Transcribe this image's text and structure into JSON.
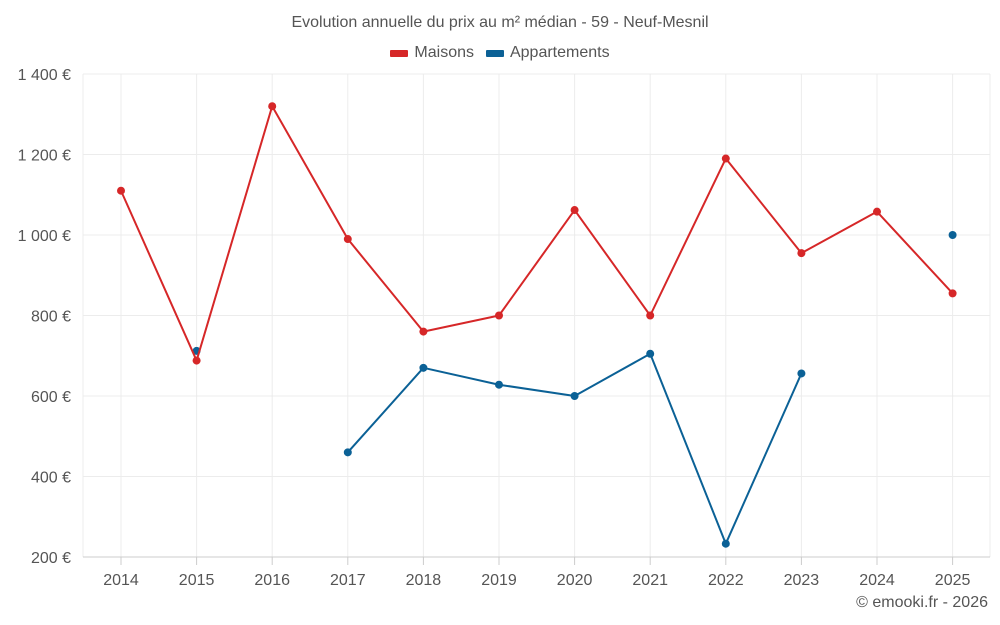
{
  "chart_data": {
    "type": "line",
    "title": "Evolution annuelle du prix au m² médian - 59 - Neuf-Mesnil",
    "xlabel": "",
    "ylabel": "",
    "categories": [
      "2014",
      "2015",
      "2016",
      "2017",
      "2018",
      "2019",
      "2020",
      "2021",
      "2022",
      "2023",
      "2024",
      "2025"
    ],
    "ylim": [
      200,
      1400
    ],
    "yticks": [
      200,
      400,
      600,
      800,
      1000,
      1200,
      1400
    ],
    "ytick_labels": [
      "200 €",
      "400 €",
      "600 €",
      "800 €",
      "1 000 €",
      "1 200 €",
      "1 400 €"
    ],
    "grid": true,
    "legend_position": "top-center",
    "series": [
      {
        "name": "Maisons",
        "color": "#d62728",
        "values": [
          1110,
          688,
          1320,
          990,
          760,
          800,
          1062,
          800,
          1190,
          955,
          1058,
          855
        ]
      },
      {
        "name": "Appartements",
        "color": "#0b6196",
        "values": [
          null,
          712,
          null,
          460,
          670,
          628,
          600,
          705,
          233,
          656,
          null,
          1000
        ]
      }
    ]
  },
  "footer": {
    "credit": "© emooki.fr - 2026"
  }
}
